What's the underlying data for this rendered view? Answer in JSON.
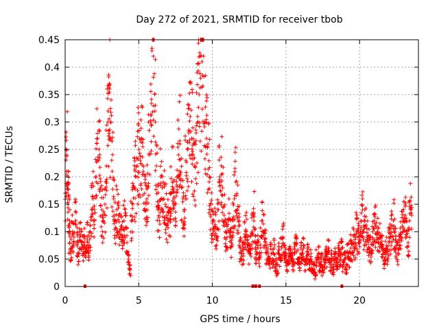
{
  "chart_data": {
    "type": "scatter",
    "title": "Day 272 of 2021, SRMTID for receiver tbob",
    "xlabel": "GPS time / hours",
    "ylabel": "SRMTID / TECUs",
    "xlim": [
      0,
      24
    ],
    "ylim": [
      0,
      0.45
    ],
    "x_ticks": [
      0,
      5,
      10,
      15,
      20
    ],
    "x_tick_labels": [
      "0",
      "5",
      "10",
      "15",
      "20"
    ],
    "y_ticks": [
      0,
      0.05,
      0.1,
      0.15,
      0.2,
      0.25,
      0.3,
      0.35,
      0.4,
      0.45
    ],
    "y_tick_labels": [
      "0",
      "0.05",
      "0.1",
      "0.15",
      "0.2",
      "0.25",
      "0.3",
      "0.35",
      "0.4",
      "0.45"
    ],
    "grid": true,
    "marker": "+",
    "color": "#ff0000",
    "series": [
      {
        "name": "SRMTID",
        "description_points": [
          [
            0.0,
            0.17
          ],
          [
            0.1,
            0.24
          ],
          [
            0.1,
            0.21
          ],
          [
            0.2,
            0.19
          ],
          [
            0.2,
            0.15
          ],
          [
            0.3,
            0.12
          ],
          [
            0.3,
            0.08
          ],
          [
            0.4,
            0.07
          ],
          [
            0.5,
            0.1
          ],
          [
            0.6,
            0.09
          ],
          [
            0.7,
            0.12
          ],
          [
            0.8,
            0.08
          ],
          [
            0.9,
            0.06
          ],
          [
            1.0,
            0.09
          ],
          [
            1.1,
            0.1
          ],
          [
            1.2,
            0.07
          ],
          [
            1.3,
            0.08
          ],
          [
            1.4,
            0.06
          ],
          [
            1.5,
            0.09
          ],
          [
            1.6,
            0.07
          ],
          [
            1.7,
            0.1
          ],
          [
            1.8,
            0.14
          ],
          [
            1.9,
            0.16
          ],
          [
            2.0,
            0.12
          ],
          [
            2.1,
            0.2
          ],
          [
            2.2,
            0.27
          ],
          [
            2.3,
            0.25
          ],
          [
            2.4,
            0.18
          ],
          [
            2.5,
            0.14
          ],
          [
            2.6,
            0.12
          ],
          [
            2.7,
            0.15
          ],
          [
            2.8,
            0.22
          ],
          [
            2.9,
            0.3
          ],
          [
            3.0,
            0.37
          ],
          [
            3.0,
            0.36
          ],
          [
            3.1,
            0.27
          ],
          [
            3.2,
            0.21
          ],
          [
            3.3,
            0.16
          ],
          [
            3.4,
            0.12
          ],
          [
            3.5,
            0.14
          ],
          [
            3.6,
            0.13
          ],
          [
            3.7,
            0.1
          ],
          [
            3.8,
            0.11
          ],
          [
            3.9,
            0.09
          ],
          [
            4.0,
            0.12
          ],
          [
            4.1,
            0.13
          ],
          [
            4.2,
            0.08
          ],
          [
            4.3,
            0.05
          ],
          [
            4.4,
            0.03
          ],
          [
            4.5,
            0.12
          ],
          [
            4.6,
            0.15
          ],
          [
            4.7,
            0.18
          ],
          [
            4.8,
            0.2
          ],
          [
            4.9,
            0.22
          ],
          [
            5.0,
            0.25
          ],
          [
            5.1,
            0.23
          ],
          [
            5.2,
            0.27
          ],
          [
            5.3,
            0.21
          ],
          [
            5.4,
            0.17
          ],
          [
            5.5,
            0.15
          ],
          [
            5.6,
            0.18
          ],
          [
            5.7,
            0.24
          ],
          [
            5.8,
            0.3
          ],
          [
            5.9,
            0.43
          ],
          [
            6.0,
            0.42
          ],
          [
            6.1,
            0.32
          ],
          [
            6.2,
            0.22
          ],
          [
            6.3,
            0.14
          ],
          [
            6.4,
            0.12
          ],
          [
            6.5,
            0.2
          ],
          [
            6.6,
            0.18
          ],
          [
            6.7,
            0.16
          ],
          [
            6.8,
            0.15
          ],
          [
            6.9,
            0.13
          ],
          [
            7.0,
            0.12
          ],
          [
            7.1,
            0.14
          ],
          [
            7.2,
            0.17
          ],
          [
            7.3,
            0.19
          ],
          [
            7.4,
            0.16
          ],
          [
            7.5,
            0.15
          ],
          [
            7.6,
            0.2
          ],
          [
            7.7,
            0.24
          ],
          [
            7.8,
            0.26
          ],
          [
            7.9,
            0.18
          ],
          [
            8.0,
            0.16
          ],
          [
            8.1,
            0.14
          ],
          [
            8.2,
            0.23
          ],
          [
            8.3,
            0.25
          ],
          [
            8.4,
            0.28
          ],
          [
            8.5,
            0.31
          ],
          [
            8.6,
            0.27
          ],
          [
            8.7,
            0.24
          ],
          [
            8.8,
            0.22
          ],
          [
            8.9,
            0.28
          ],
          [
            9.0,
            0.31
          ],
          [
            9.1,
            0.35
          ],
          [
            9.2,
            0.38
          ],
          [
            9.3,
            0.41
          ],
          [
            9.4,
            0.42
          ],
          [
            9.5,
            0.3
          ],
          [
            9.6,
            0.27
          ],
          [
            9.7,
            0.26
          ],
          [
            9.8,
            0.2
          ],
          [
            9.9,
            0.15
          ],
          [
            10.0,
            0.12
          ],
          [
            10.1,
            0.1
          ],
          [
            10.2,
            0.11
          ],
          [
            10.3,
            0.09
          ],
          [
            10.4,
            0.14
          ],
          [
            10.5,
            0.2
          ],
          [
            10.6,
            0.22
          ],
          [
            10.7,
            0.18
          ],
          [
            10.8,
            0.13
          ],
          [
            10.9,
            0.1
          ],
          [
            11.0,
            0.09
          ],
          [
            11.1,
            0.12
          ],
          [
            11.2,
            0.1
          ],
          [
            11.3,
            0.08
          ],
          [
            11.4,
            0.12
          ],
          [
            11.5,
            0.16
          ],
          [
            11.6,
            0.19
          ],
          [
            11.7,
            0.14
          ],
          [
            11.8,
            0.11
          ],
          [
            11.9,
            0.07
          ],
          [
            12.0,
            0.05
          ],
          [
            12.1,
            0.06
          ],
          [
            12.2,
            0.09
          ],
          [
            12.3,
            0.1
          ],
          [
            12.4,
            0.08
          ],
          [
            12.5,
            0.06
          ],
          [
            12.6,
            0.07
          ],
          [
            12.7,
            0.1
          ],
          [
            12.8,
            0.13
          ],
          [
            12.9,
            0.08
          ],
          [
            13.0,
            0.06
          ],
          [
            13.1,
            0.07
          ],
          [
            13.2,
            0.05
          ],
          [
            13.3,
            0.09
          ],
          [
            13.4,
            0.12
          ],
          [
            13.5,
            0.1
          ],
          [
            13.6,
            0.08
          ],
          [
            13.7,
            0.06
          ],
          [
            13.8,
            0.05
          ],
          [
            13.9,
            0.04
          ],
          [
            14.0,
            0.06
          ],
          [
            14.1,
            0.05
          ],
          [
            14.2,
            0.07
          ],
          [
            14.3,
            0.04
          ],
          [
            14.4,
            0.03
          ],
          [
            14.5,
            0.06
          ],
          [
            14.6,
            0.05
          ],
          [
            14.7,
            0.07
          ],
          [
            14.8,
            0.09
          ],
          [
            14.9,
            0.06
          ],
          [
            15.0,
            0.05
          ],
          [
            15.1,
            0.04
          ],
          [
            15.2,
            0.06
          ],
          [
            15.3,
            0.07
          ],
          [
            15.4,
            0.05
          ],
          [
            15.5,
            0.04
          ],
          [
            15.6,
            0.06
          ],
          [
            15.7,
            0.08
          ],
          [
            15.8,
            0.05
          ],
          [
            15.9,
            0.04
          ],
          [
            16.0,
            0.06
          ],
          [
            16.1,
            0.05
          ],
          [
            16.2,
            0.07
          ],
          [
            16.3,
            0.04
          ],
          [
            16.4,
            0.05
          ],
          [
            16.5,
            0.06
          ],
          [
            16.6,
            0.04
          ],
          [
            16.7,
            0.05
          ],
          [
            16.8,
            0.03
          ],
          [
            16.9,
            0.04
          ],
          [
            17.0,
            0.02
          ],
          [
            17.1,
            0.05
          ],
          [
            17.2,
            0.06
          ],
          [
            17.3,
            0.04
          ],
          [
            17.4,
            0.05
          ],
          [
            17.5,
            0.03
          ],
          [
            17.6,
            0.04
          ],
          [
            17.7,
            0.06
          ],
          [
            17.8,
            0.05
          ],
          [
            17.9,
            0.07
          ],
          [
            18.0,
            0.04
          ],
          [
            18.1,
            0.05
          ],
          [
            18.2,
            0.03
          ],
          [
            18.3,
            0.06
          ],
          [
            18.4,
            0.05
          ],
          [
            18.5,
            0.04
          ],
          [
            18.6,
            0.06
          ],
          [
            18.7,
            0.05
          ],
          [
            18.8,
            0.07
          ],
          [
            18.9,
            0.04
          ],
          [
            19.0,
            0.05
          ],
          [
            19.1,
            0.03
          ],
          [
            19.2,
            0.06
          ],
          [
            19.3,
            0.05
          ],
          [
            19.4,
            0.07
          ],
          [
            19.5,
            0.06
          ],
          [
            19.6,
            0.08
          ],
          [
            19.7,
            0.07
          ],
          [
            19.8,
            0.1
          ],
          [
            19.9,
            0.09
          ],
          [
            20.0,
            0.08
          ],
          [
            20.1,
            0.12
          ],
          [
            20.2,
            0.14
          ],
          [
            20.3,
            0.1
          ],
          [
            20.4,
            0.11
          ],
          [
            20.5,
            0.09
          ],
          [
            20.6,
            0.08
          ],
          [
            20.7,
            0.07
          ],
          [
            20.8,
            0.06
          ],
          [
            20.9,
            0.1
          ],
          [
            21.0,
            0.12
          ],
          [
            21.1,
            0.11
          ],
          [
            21.2,
            0.1
          ],
          [
            21.3,
            0.08
          ],
          [
            21.4,
            0.09
          ],
          [
            21.5,
            0.07
          ],
          [
            21.6,
            0.06
          ],
          [
            21.7,
            0.05
          ],
          [
            21.8,
            0.07
          ],
          [
            21.9,
            0.06
          ],
          [
            22.0,
            0.08
          ],
          [
            22.1,
            0.09
          ],
          [
            22.2,
            0.11
          ],
          [
            22.3,
            0.12
          ],
          [
            22.4,
            0.1
          ],
          [
            22.5,
            0.08
          ],
          [
            22.6,
            0.06
          ],
          [
            22.7,
            0.07
          ],
          [
            22.8,
            0.09
          ],
          [
            22.9,
            0.11
          ],
          [
            23.0,
            0.12
          ],
          [
            23.1,
            0.13
          ],
          [
            23.2,
            0.1
          ],
          [
            23.3,
            0.08
          ],
          [
            23.4,
            0.12
          ],
          [
            23.5,
            0.14
          ]
        ],
        "gap_markers_x": [
          1.35,
          12.75,
          12.95,
          13.2,
          18.8
        ]
      }
    ]
  }
}
